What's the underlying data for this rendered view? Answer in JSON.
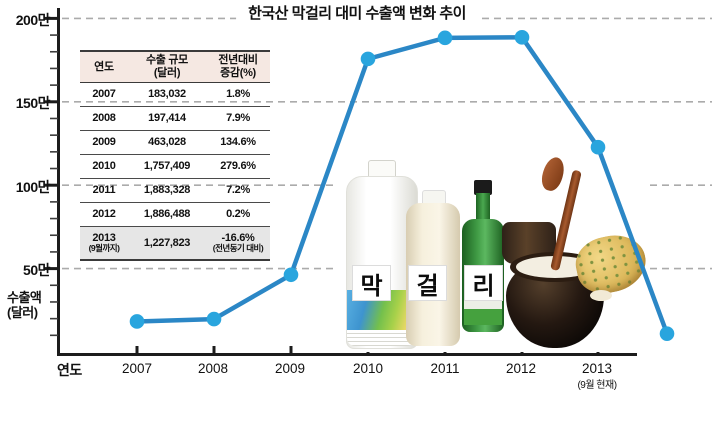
{
  "title": "한국산 막걸리 대미 수출액 변화 추이",
  "axes": {
    "y_unit_labels": [
      "200만",
      "150만",
      "100만",
      "50만"
    ],
    "y_axis_label_line1": "수출액",
    "y_axis_label_line2": "(달러)",
    "x_axis_label": "연도",
    "x_year_labels": [
      "2007",
      "2008",
      "2009",
      "2010",
      "2011",
      "2012",
      "2013"
    ],
    "x_note": "(9월 현재)"
  },
  "table": {
    "headers": [
      {
        "line1": "연도",
        "line2": ""
      },
      {
        "line1": "수출 규모",
        "line2": "(달러)"
      },
      {
        "line1": "전년대비",
        "line2": "증감(%)"
      }
    ],
    "rows": [
      {
        "year": "2007",
        "year_note": "",
        "amount": "183,032",
        "change": "1.8%",
        "change_note": ""
      },
      {
        "year": "2008",
        "year_note": "",
        "amount": "197,414",
        "change": "7.9%",
        "change_note": ""
      },
      {
        "year": "2009",
        "year_note": "",
        "amount": "463,028",
        "change": "134.6%",
        "change_note": ""
      },
      {
        "year": "2010",
        "year_note": "",
        "amount": "1,757,409",
        "change": "279.6%",
        "change_note": ""
      },
      {
        "year": "2011",
        "year_note": "",
        "amount": "1,883,328",
        "change": "7.2%",
        "change_note": ""
      },
      {
        "year": "2012",
        "year_note": "",
        "amount": "1,886,488",
        "change": "0.2%",
        "change_note": ""
      },
      {
        "year": "2013",
        "year_note": "(9월까지)",
        "amount": "1,227,823",
        "change": "-16.6%",
        "change_note": "(전년동기 대비)"
      }
    ]
  },
  "photo": {
    "label_chars": [
      "막",
      "걸",
      "리"
    ]
  },
  "colors": {
    "line": "#2b87c6",
    "marker": "#29a5de",
    "grid": "#ababab",
    "axis": "#1c1c1c",
    "table_header_bg": "#f5e8e2",
    "table_highlight_bg": "#e6e6e6"
  },
  "chart_data": {
    "type": "line",
    "title": "한국산 막걸리 대미 수출액 변화 추이",
    "xlabel": "연도",
    "ylabel": "수출액 (달러)",
    "categories": [
      "2007",
      "2008",
      "2009",
      "2010",
      "2011",
      "2012",
      "2013"
    ],
    "values": [
      183032,
      197414,
      463028,
      1757409,
      1883328,
      1886488,
      1227823
    ],
    "last_category_note": "(9월 현재)",
    "trailing_unlabeled_point_value": 110000,
    "y_tick_values": [
      2000000,
      1500000,
      1000000,
      500000
    ],
    "y_tick_labels": [
      "200만",
      "150만",
      "100만",
      "50만"
    ],
    "ylim": [
      0,
      2050000
    ],
    "grid": "dashed-horizontal",
    "legend": "none"
  }
}
